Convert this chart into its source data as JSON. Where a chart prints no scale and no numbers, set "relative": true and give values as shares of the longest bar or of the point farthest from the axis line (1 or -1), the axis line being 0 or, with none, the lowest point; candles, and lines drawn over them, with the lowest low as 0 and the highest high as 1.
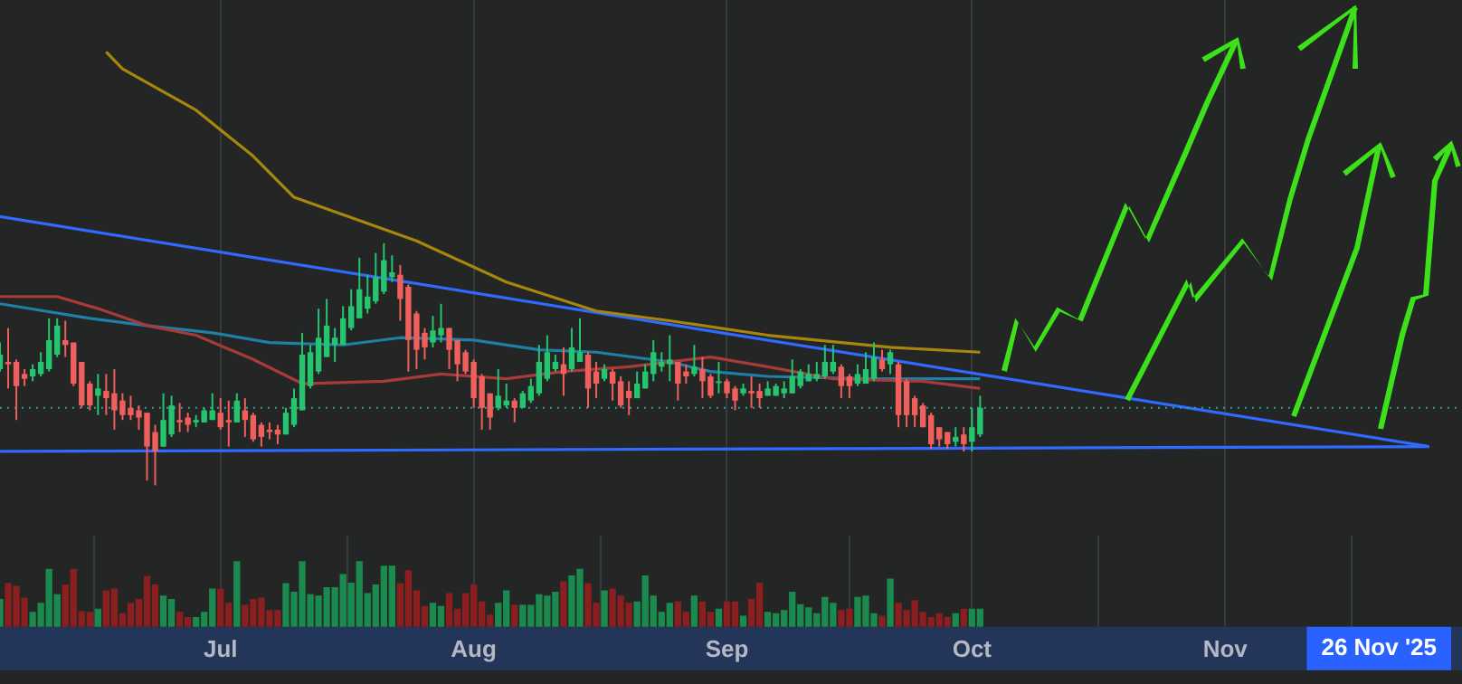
{
  "chart_data": [
    {
      "type": "candlestick",
      "relative": true,
      "tick_labels": false,
      "grid": "x",
      "xlim": [
        "2025-06-04",
        "2025-11-30"
      ],
      "xticks": [
        {
          "value": "2025-07-01",
          "label": null
        },
        {
          "value": "2025-08-01",
          "label": null
        },
        {
          "value": "2025-09-01",
          "label": null
        },
        {
          "value": "2025-10-01",
          "label": null
        },
        {
          "value": "2025-11-01",
          "label": null
        }
      ],
      "x": [
        "2025-06-04",
        "2025-06-05",
        "2025-06-06",
        "2025-06-07",
        "2025-06-08",
        "2025-06-09",
        "2025-06-10",
        "2025-06-11",
        "2025-06-12",
        "2025-06-13",
        "2025-06-14",
        "2025-06-15",
        "2025-06-16",
        "2025-06-17",
        "2025-06-18",
        "2025-06-19",
        "2025-06-20",
        "2025-06-21",
        "2025-06-22",
        "2025-06-23",
        "2025-06-24",
        "2025-06-25",
        "2025-06-26",
        "2025-06-27",
        "2025-06-28",
        "2025-06-29",
        "2025-06-30",
        "2025-07-01",
        "2025-07-02",
        "2025-07-03",
        "2025-07-04",
        "2025-07-05",
        "2025-07-06",
        "2025-07-07",
        "2025-07-08",
        "2025-07-09",
        "2025-07-10",
        "2025-07-11",
        "2025-07-12",
        "2025-07-13",
        "2025-07-14",
        "2025-07-15",
        "2025-07-16",
        "2025-07-17",
        "2025-07-18",
        "2025-07-19",
        "2025-07-20",
        "2025-07-21",
        "2025-07-22",
        "2025-07-23",
        "2025-07-24",
        "2025-07-25",
        "2025-07-26",
        "2025-07-27",
        "2025-07-28",
        "2025-07-29",
        "2025-07-30",
        "2025-07-31",
        "2025-08-01",
        "2025-08-02",
        "2025-08-03",
        "2025-08-04",
        "2025-08-05",
        "2025-08-06",
        "2025-08-07",
        "2025-08-08",
        "2025-08-09",
        "2025-08-10",
        "2025-08-11",
        "2025-08-12",
        "2025-08-13",
        "2025-08-14",
        "2025-08-15",
        "2025-08-16",
        "2025-08-17",
        "2025-08-18",
        "2025-08-19",
        "2025-08-20",
        "2025-08-21",
        "2025-08-22",
        "2025-08-23",
        "2025-08-24",
        "2025-08-25",
        "2025-08-26",
        "2025-08-27",
        "2025-08-28",
        "2025-08-29",
        "2025-08-30",
        "2025-08-31",
        "2025-09-01",
        "2025-09-02",
        "2025-09-03",
        "2025-09-04",
        "2025-09-05",
        "2025-09-06",
        "2025-09-07",
        "2025-09-08",
        "2025-09-09",
        "2025-09-10",
        "2025-09-11",
        "2025-09-12",
        "2025-09-13",
        "2025-09-14",
        "2025-09-15",
        "2025-09-16",
        "2025-09-17",
        "2025-09-18",
        "2025-09-19",
        "2025-09-20",
        "2025-09-21",
        "2025-09-22",
        "2025-09-23",
        "2025-09-24",
        "2025-09-25",
        "2025-09-26",
        "2025-09-27",
        "2025-09-28",
        "2025-09-29",
        "2025-09-30",
        "2025-10-01",
        "2025-10-02"
      ],
      "ohlc": [
        [
          0.48,
          0.59,
          0.47,
          0.54
        ],
        [
          0.51,
          0.65,
          0.4,
          0.5
        ],
        [
          0.51,
          0.52,
          0.27,
          0.41
        ],
        [
          0.46,
          0.48,
          0.41,
          0.44
        ],
        [
          0.45,
          0.5,
          0.43,
          0.48
        ],
        [
          0.46,
          0.55,
          0.45,
          0.51
        ],
        [
          0.48,
          0.69,
          0.47,
          0.6
        ],
        [
          0.54,
          0.69,
          0.53,
          0.66
        ],
        [
          0.6,
          0.68,
          0.53,
          0.58
        ],
        [
          0.59,
          0.59,
          0.41,
          0.42
        ],
        [
          0.51,
          0.51,
          0.32,
          0.33
        ],
        [
          0.42,
          0.43,
          0.31,
          0.33
        ],
        [
          0.37,
          0.46,
          0.29,
          0.4
        ],
        [
          0.39,
          0.46,
          0.29,
          0.36
        ],
        [
          0.38,
          0.48,
          0.23,
          0.31
        ],
        [
          0.35,
          0.38,
          0.27,
          0.29
        ],
        [
          0.32,
          0.37,
          0.27,
          0.29
        ],
        [
          0.31,
          0.33,
          0.23,
          0.28
        ],
        [
          0.3,
          0.3,
          0.02,
          0.16
        ],
        [
          0.22,
          0.25,
          0,
          0.14
        ],
        [
          0.16,
          0.38,
          0.16,
          0.27
        ],
        [
          0.21,
          0.37,
          0.2,
          0.33
        ],
        [
          0.27,
          0.34,
          0.22,
          0.26
        ],
        [
          0.28,
          0.3,
          0.22,
          0.25
        ],
        [
          0.26,
          0.29,
          0.24,
          0.27
        ],
        [
          0.26,
          0.32,
          0.26,
          0.31
        ],
        [
          0.27,
          0.38,
          0.27,
          0.31
        ],
        [
          0.3,
          0.36,
          0.23,
          0.24
        ],
        [
          0.27,
          0.35,
          0.16,
          0.26
        ],
        [
          0.26,
          0.38,
          0.26,
          0.35
        ],
        [
          0.31,
          0.36,
          0.2,
          0.27
        ],
        [
          0.29,
          0.3,
          0.18,
          0.19
        ],
        [
          0.25,
          0.26,
          0.16,
          0.2
        ],
        [
          0.23,
          0.26,
          0.19,
          0.22
        ],
        [
          0.23,
          0.25,
          0.17,
          0.21
        ],
        [
          0.21,
          0.32,
          0.21,
          0.3
        ],
        [
          0.25,
          0.4,
          0.24,
          0.36
        ],
        [
          0.31,
          0.63,
          0.31,
          0.54
        ],
        [
          0.41,
          0.58,
          0.4,
          0.55
        ],
        [
          0.47,
          0.73,
          0.46,
          0.61
        ],
        [
          0.53,
          0.77,
          0.53,
          0.66
        ],
        [
          0.58,
          0.65,
          0.51,
          0.61
        ],
        [
          0.58,
          0.74,
          0.58,
          0.69
        ],
        [
          0.65,
          0.81,
          0.64,
          0.74
        ],
        [
          0.69,
          0.94,
          0.69,
          0.81
        ],
        [
          0.73,
          0.87,
          0.71,
          0.78
        ],
        [
          0.76,
          0.96,
          0.75,
          0.86
        ],
        [
          0.8,
          1,
          0.79,
          0.93
        ],
        [
          0.86,
          0.95,
          0.84,
          0.88
        ],
        [
          0.87,
          0.91,
          0.68,
          0.77
        ],
        [
          0.82,
          0.83,
          0.47,
          0.6
        ],
        [
          0.71,
          0.72,
          0.48,
          0.56
        ],
        [
          0.63,
          0.65,
          0.52,
          0.57
        ],
        [
          0.59,
          0.7,
          0.57,
          0.64
        ],
        [
          0.62,
          0.75,
          0.59,
          0.65
        ],
        [
          0.65,
          0.65,
          0.48,
          0.56
        ],
        [
          0.6,
          0.6,
          0.43,
          0.5
        ],
        [
          0.55,
          0.56,
          0.46,
          0.47
        ],
        [
          0.51,
          0.52,
          0.32,
          0.36
        ],
        [
          0.45,
          0.46,
          0.23,
          0.32
        ],
        [
          0.38,
          0.38,
          0.23,
          0.28
        ],
        [
          0.32,
          0.48,
          0.31,
          0.37
        ],
        [
          0.33,
          0.42,
          0.32,
          0.35
        ],
        [
          0.35,
          0.36,
          0.26,
          0.32
        ],
        [
          0.32,
          0.39,
          0.32,
          0.38
        ],
        [
          0.35,
          0.44,
          0.34,
          0.41
        ],
        [
          0.38,
          0.58,
          0.37,
          0.51
        ],
        [
          0.44,
          0.62,
          0.43,
          0.55
        ],
        [
          0.48,
          0.54,
          0.47,
          0.51
        ],
        [
          0.5,
          0.57,
          0.37,
          0.46
        ],
        [
          0.48,
          0.65,
          0.47,
          0.57
        ],
        [
          0.51,
          0.69,
          0.51,
          0.55
        ],
        [
          0.54,
          0.55,
          0.32,
          0.4
        ],
        [
          0.47,
          0.51,
          0.36,
          0.42
        ],
        [
          0.44,
          0.5,
          0.43,
          0.48
        ],
        [
          0.47,
          0.48,
          0.35,
          0.42
        ],
        [
          0.43,
          0.45,
          0.32,
          0.33
        ],
        [
          0.39,
          0.43,
          0.29,
          0.36
        ],
        [
          0.36,
          0.47,
          0.36,
          0.42
        ],
        [
          0.4,
          0.5,
          0.4,
          0.47
        ],
        [
          0.46,
          0.6,
          0.43,
          0.55
        ],
        [
          0.49,
          0.55,
          0.47,
          0.51
        ],
        [
          0.5,
          0.62,
          0.43,
          0.52
        ],
        [
          0.51,
          0.51,
          0.35,
          0.42
        ],
        [
          0.47,
          0.5,
          0.42,
          0.45
        ],
        [
          0.46,
          0.58,
          0.45,
          0.49
        ],
        [
          0.48,
          0.53,
          0.36,
          0.43
        ],
        [
          0.45,
          0.46,
          0.36,
          0.37
        ],
        [
          0.43,
          0.51,
          0.38,
          0.43
        ],
        [
          0.43,
          0.44,
          0.36,
          0.38
        ],
        [
          0.4,
          0.41,
          0.31,
          0.35
        ],
        [
          0.38,
          0.42,
          0.37,
          0.4
        ],
        [
          0.39,
          0.45,
          0.32,
          0.38
        ],
        [
          0.39,
          0.42,
          0.32,
          0.36
        ],
        [
          0.37,
          0.43,
          0.37,
          0.4
        ],
        [
          0.37,
          0.42,
          0.37,
          0.41
        ],
        [
          0.38,
          0.43,
          0.36,
          0.4
        ],
        [
          0.38,
          0.52,
          0.38,
          0.45
        ],
        [
          0.41,
          0.48,
          0.4,
          0.47
        ],
        [
          0.43,
          0.5,
          0.43,
          0.46
        ],
        [
          0.44,
          0.51,
          0.43,
          0.46
        ],
        [
          0.45,
          0.58,
          0.44,
          0.51
        ],
        [
          0.47,
          0.58,
          0.46,
          0.51
        ],
        [
          0.49,
          0.5,
          0.36,
          0.41
        ],
        [
          0.45,
          0.46,
          0.36,
          0.41
        ],
        [
          0.42,
          0.5,
          0.41,
          0.46
        ],
        [
          0.42,
          0.55,
          0.42,
          0.48
        ],
        [
          0.44,
          0.59,
          0.43,
          0.53
        ],
        [
          0.52,
          0.56,
          0.47,
          0.48
        ],
        [
          0.5,
          0.56,
          0.46,
          0.55
        ],
        [
          0.5,
          0.51,
          0.24,
          0.29
        ],
        [
          0.43,
          0.44,
          0.24,
          0.29
        ],
        [
          0.36,
          0.37,
          0.24,
          0.29
        ],
        [
          0.33,
          0.34,
          0.24,
          0.24
        ],
        [
          0.29,
          0.3,
          0.15,
          0.17
        ],
        [
          0.24,
          0.24,
          0.16,
          0.19
        ],
        [
          0.22,
          0.22,
          0.15,
          0.17
        ],
        [
          0.18,
          0.24,
          0.16,
          0.2
        ],
        [
          0.21,
          0.24,
          0.14,
          0.17
        ],
        [
          0.18,
          0.32,
          0.14,
          0.24
        ],
        [
          0.21,
          0.37,
          0.2,
          0.32
        ]
      ],
      "colors": [
        "#26c46e",
        "#ef5f5b",
        "#ef5f5b",
        "#ef5f5b",
        "#26c46e",
        "#26c46e",
        "#26c46e",
        "#26c46e",
        "#ef5f5b",
        "#ef5f5b",
        "#ef5f5b",
        "#ef5f5b",
        "#26c46e",
        "#ef5f5b",
        "#ef5f5b",
        "#ef5f5b",
        "#ef5f5b",
        "#ef5f5b",
        "#ef5f5b",
        "#ef5f5b",
        "#26c46e",
        "#26c46e",
        "#ef5f5b",
        "#ef5f5b",
        "#26c46e",
        "#26c46e",
        "#26c46e",
        "#ef5f5b",
        "#ef5f5b",
        "#26c46e",
        "#ef5f5b",
        "#ef5f5b",
        "#ef5f5b",
        "#ef5f5b",
        "#ef5f5b",
        "#26c46e",
        "#26c46e",
        "#26c46e",
        "#26c46e",
        "#26c46e",
        "#26c46e",
        "#26c46e",
        "#26c46e",
        "#26c46e",
        "#26c46e",
        "#26c46e",
        "#26c46e",
        "#26c46e",
        "#26c46e",
        "#ef5f5b",
        "#ef5f5b",
        "#ef5f5b",
        "#ef5f5b",
        "#26c46e",
        "#26c46e",
        "#ef5f5b",
        "#ef5f5b",
        "#ef5f5b",
        "#ef5f5b",
        "#ef5f5b",
        "#ef5f5b",
        "#26c46e",
        "#26c46e",
        "#ef5f5b",
        "#26c46e",
        "#26c46e",
        "#26c46e",
        "#26c46e",
        "#26c46e",
        "#ef5f5b",
        "#26c46e",
        "#26c46e",
        "#ef5f5b",
        "#ef5f5b",
        "#26c46e",
        "#ef5f5b",
        "#ef5f5b",
        "#ef5f5b",
        "#26c46e",
        "#26c46e",
        "#26c46e",
        "#26c46e",
        "#26c46e",
        "#ef5f5b",
        "#ef5f5b",
        "#26c46e",
        "#ef5f5b",
        "#ef5f5b",
        "#26c46e",
        "#ef5f5b",
        "#ef5f5b",
        "#26c46e",
        "#ef5f5b",
        "#ef5f5b",
        "#26c46e",
        "#26c46e",
        "#26c46e",
        "#26c46e",
        "#26c46e",
        "#26c46e",
        "#26c46e",
        "#26c46e",
        "#26c46e",
        "#ef5f5b",
        "#ef5f5b",
        "#26c46e",
        "#26c46e",
        "#26c46e",
        "#ef5f5b",
        "#26c46e",
        "#ef5f5b",
        "#ef5f5b",
        "#ef5f5b",
        "#ef5f5b",
        "#ef5f5b",
        "#ef5f5b",
        "#ef5f5b",
        "#26c46e",
        "#ef5f5b",
        "#26c46e",
        "#26c46e"
      ],
      "series": [
        {
          "type": "line",
          "color": "#a8860e",
          "x": [
            "2025-06-17",
            "2025-06-19",
            "2025-06-28",
            "2025-07-05",
            "2025-07-10",
            "2025-07-25",
            "2025-08-05",
            "2025-08-16",
            "2025-08-25",
            "2025-09-06",
            "2025-09-21",
            "2025-10-02"
          ],
          "values": [
            1.79,
            1.72,
            1.55,
            1.36,
            1.19,
            1.01,
            0.84,
            0.72,
            0.68,
            0.62,
            0.57,
            0.55
          ]
        },
        {
          "type": "line",
          "color": "#a83a3a",
          "x": [
            "2025-06-04",
            "2025-06-11",
            "2025-06-16",
            "2025-06-22",
            "2025-06-28",
            "2025-07-05",
            "2025-07-11",
            "2025-07-21",
            "2025-07-28",
            "2025-08-05",
            "2025-08-12",
            "2025-08-20",
            "2025-08-30",
            "2025-09-06",
            "2025-09-14",
            "2025-09-25",
            "2025-10-02"
          ],
          "values": [
            0.78,
            0.78,
            0.73,
            0.66,
            0.62,
            0.52,
            0.42,
            0.43,
            0.46,
            0.44,
            0.47,
            0.49,
            0.53,
            0.49,
            0.44,
            0.43,
            0.4
          ]
        },
        {
          "type": "line",
          "color": "#1f7fa8",
          "x": [
            "2025-06-04",
            "2025-06-15",
            "2025-06-22",
            "2025-06-30",
            "2025-07-07",
            "2025-07-16",
            "2025-07-23",
            "2025-08-01",
            "2025-08-09",
            "2025-08-16",
            "2025-08-25",
            "2025-08-30",
            "2025-09-06",
            "2025-09-18",
            "2025-10-02"
          ],
          "values": [
            0.75,
            0.69,
            0.66,
            0.63,
            0.59,
            0.58,
            0.61,
            0.6,
            0.56,
            0.55,
            0.51,
            0.47,
            0.45,
            0.44,
            0.44
          ]
        },
        {
          "type": "line",
          "color": "#2f6bff",
          "x": [
            "2025-06-04",
            "2025-11-26"
          ],
          "values": [
            1.11,
            0.16
          ]
        },
        {
          "type": "line",
          "color": "#2f6bff",
          "x": [
            "2025-06-04",
            "2025-11-26"
          ],
          "values": [
            0.14,
            0.16
          ]
        }
      ],
      "ref_lines": [
        {
          "axis": "y",
          "value": 0.32,
          "color": "#26a69a",
          "line_style": "dotted"
        }
      ]
    },
    {
      "type": "bar",
      "relative": true,
      "grid": "x",
      "xlim": [
        "2025-06-04",
        "2025-11-30"
      ],
      "xticks": [
        {
          "value": "2025-07-01",
          "label": "Jul"
        },
        {
          "value": "2025-08-01",
          "label": "Aug"
        },
        {
          "value": "2025-09-01",
          "label": "Sep"
        },
        {
          "value": "2025-10-01",
          "label": "Oct"
        },
        {
          "value": "2025-11-01",
          "label": "Nov"
        }
      ],
      "x": [
        "2025-06-04",
        "2025-06-05",
        "2025-06-06",
        "2025-06-07",
        "2025-06-08",
        "2025-06-09",
        "2025-06-10",
        "2025-06-11",
        "2025-06-12",
        "2025-06-13",
        "2025-06-14",
        "2025-06-15",
        "2025-06-16",
        "2025-06-17",
        "2025-06-18",
        "2025-06-19",
        "2025-06-20",
        "2025-06-21",
        "2025-06-22",
        "2025-06-23",
        "2025-06-24",
        "2025-06-25",
        "2025-06-26",
        "2025-06-27",
        "2025-06-28",
        "2025-06-29",
        "2025-06-30",
        "2025-07-01",
        "2025-07-02",
        "2025-07-03",
        "2025-07-04",
        "2025-07-05",
        "2025-07-06",
        "2025-07-07",
        "2025-07-08",
        "2025-07-09",
        "2025-07-10",
        "2025-07-11",
        "2025-07-12",
        "2025-07-13",
        "2025-07-14",
        "2025-07-15",
        "2025-07-16",
        "2025-07-17",
        "2025-07-18",
        "2025-07-19",
        "2025-07-20",
        "2025-07-21",
        "2025-07-22",
        "2025-07-23",
        "2025-07-24",
        "2025-07-25",
        "2025-07-26",
        "2025-07-27",
        "2025-07-28",
        "2025-07-29",
        "2025-07-30",
        "2025-07-31",
        "2025-08-01",
        "2025-08-02",
        "2025-08-03",
        "2025-08-04",
        "2025-08-05",
        "2025-08-06",
        "2025-08-07",
        "2025-08-08",
        "2025-08-09",
        "2025-08-10",
        "2025-08-11",
        "2025-08-12",
        "2025-08-13",
        "2025-08-14",
        "2025-08-15",
        "2025-08-16",
        "2025-08-17",
        "2025-08-18",
        "2025-08-19",
        "2025-08-20",
        "2025-08-21",
        "2025-08-22",
        "2025-08-23",
        "2025-08-24",
        "2025-08-25",
        "2025-08-26",
        "2025-08-27",
        "2025-08-28",
        "2025-08-29",
        "2025-08-30",
        "2025-08-31",
        "2025-09-01",
        "2025-09-02",
        "2025-09-03",
        "2025-09-04",
        "2025-09-05",
        "2025-09-06",
        "2025-09-07",
        "2025-09-08",
        "2025-09-09",
        "2025-09-10",
        "2025-09-11",
        "2025-09-12",
        "2025-09-13",
        "2025-09-14",
        "2025-09-15",
        "2025-09-16",
        "2025-09-17",
        "2025-09-18",
        "2025-09-19",
        "2025-09-20",
        "2025-09-21",
        "2025-09-22",
        "2025-09-23",
        "2025-09-24",
        "2025-09-25",
        "2025-09-26",
        "2025-09-27",
        "2025-09-28",
        "2025-09-29",
        "2025-09-30",
        "2025-10-01",
        "2025-10-02"
      ],
      "values": [
        0.42,
        0.66,
        0.62,
        0.44,
        0.22,
        0.36,
        0.88,
        0.49,
        0.64,
        0.88,
        0.23,
        0.22,
        0.27,
        0.55,
        0.58,
        0.2,
        0.36,
        0.42,
        0.77,
        0.64,
        0.47,
        0.42,
        0.22,
        0.14,
        0.14,
        0.22,
        0.58,
        0.58,
        0.36,
        1,
        0.33,
        0.42,
        0.44,
        0.25,
        0.25,
        0.66,
        0.53,
        1,
        0.49,
        0.47,
        0.6,
        0.6,
        0.8,
        0.67,
        1,
        0.51,
        0.64,
        0.93,
        0.93,
        0.66,
        0.86,
        0.55,
        0.31,
        0.36,
        0.31,
        0.51,
        0.27,
        0.51,
        0.64,
        0.38,
        0.18,
        0.36,
        0.55,
        0.33,
        0.33,
        0.33,
        0.49,
        0.47,
        0.53,
        0.69,
        0.78,
        0.88,
        0.66,
        0.36,
        0.55,
        0.58,
        0.47,
        0.36,
        0.38,
        0.78,
        0.47,
        0.22,
        0.36,
        0.38,
        0.22,
        0.47,
        0.38,
        0.22,
        0.27,
        0.38,
        0.38,
        0.16,
        0.42,
        0.67,
        0.22,
        0.2,
        0.25,
        0.53,
        0.34,
        0.29,
        0.2,
        0.45,
        0.36,
        0.25,
        0.27,
        0.45,
        0.47,
        0.2,
        0.16,
        0.73,
        0.36,
        0.25,
        0.4,
        0.22,
        0.14,
        0.2,
        0.14,
        0.2,
        0.27,
        0.27,
        0.27
      ],
      "colors": [
        "#1b8a4e",
        "#8b1e1e",
        "#8b1e1e",
        "#8b1e1e",
        "#1b8a4e",
        "#1b8a4e",
        "#1b8a4e",
        "#1b8a4e",
        "#8b1e1e",
        "#8b1e1e",
        "#8b1e1e",
        "#8b1e1e",
        "#1b8a4e",
        "#8b1e1e",
        "#8b1e1e",
        "#8b1e1e",
        "#8b1e1e",
        "#8b1e1e",
        "#8b1e1e",
        "#8b1e1e",
        "#1b8a4e",
        "#1b8a4e",
        "#8b1e1e",
        "#8b1e1e",
        "#1b8a4e",
        "#1b8a4e",
        "#1b8a4e",
        "#8b1e1e",
        "#8b1e1e",
        "#1b8a4e",
        "#8b1e1e",
        "#8b1e1e",
        "#8b1e1e",
        "#8b1e1e",
        "#8b1e1e",
        "#1b8a4e",
        "#1b8a4e",
        "#1b8a4e",
        "#1b8a4e",
        "#1b8a4e",
        "#1b8a4e",
        "#1b8a4e",
        "#1b8a4e",
        "#1b8a4e",
        "#1b8a4e",
        "#1b8a4e",
        "#1b8a4e",
        "#1b8a4e",
        "#1b8a4e",
        "#8b1e1e",
        "#8b1e1e",
        "#8b1e1e",
        "#8b1e1e",
        "#1b8a4e",
        "#1b8a4e",
        "#8b1e1e",
        "#8b1e1e",
        "#8b1e1e",
        "#8b1e1e",
        "#8b1e1e",
        "#8b1e1e",
        "#1b8a4e",
        "#1b8a4e",
        "#8b1e1e",
        "#1b8a4e",
        "#1b8a4e",
        "#1b8a4e",
        "#1b8a4e",
        "#1b8a4e",
        "#8b1e1e",
        "#1b8a4e",
        "#1b8a4e",
        "#8b1e1e",
        "#8b1e1e",
        "#1b8a4e",
        "#8b1e1e",
        "#8b1e1e",
        "#8b1e1e",
        "#1b8a4e",
        "#1b8a4e",
        "#1b8a4e",
        "#1b8a4e",
        "#1b8a4e",
        "#8b1e1e",
        "#8b1e1e",
        "#1b8a4e",
        "#8b1e1e",
        "#8b1e1e",
        "#1b8a4e",
        "#8b1e1e",
        "#8b1e1e",
        "#1b8a4e",
        "#8b1e1e",
        "#8b1e1e",
        "#1b8a4e",
        "#1b8a4e",
        "#1b8a4e",
        "#1b8a4e",
        "#1b8a4e",
        "#1b8a4e",
        "#1b8a4e",
        "#1b8a4e",
        "#1b8a4e",
        "#8b1e1e",
        "#8b1e1e",
        "#1b8a4e",
        "#1b8a4e",
        "#1b8a4e",
        "#8b1e1e",
        "#1b8a4e",
        "#8b1e1e",
        "#8b1e1e",
        "#8b1e1e",
        "#8b1e1e",
        "#8b1e1e",
        "#8b1e1e",
        "#8b1e1e",
        "#1b8a4e",
        "#8b1e1e",
        "#1b8a4e",
        "#1b8a4e"
      ],
      "annotations": [
        "26 Nov '25"
      ]
    }
  ]
}
